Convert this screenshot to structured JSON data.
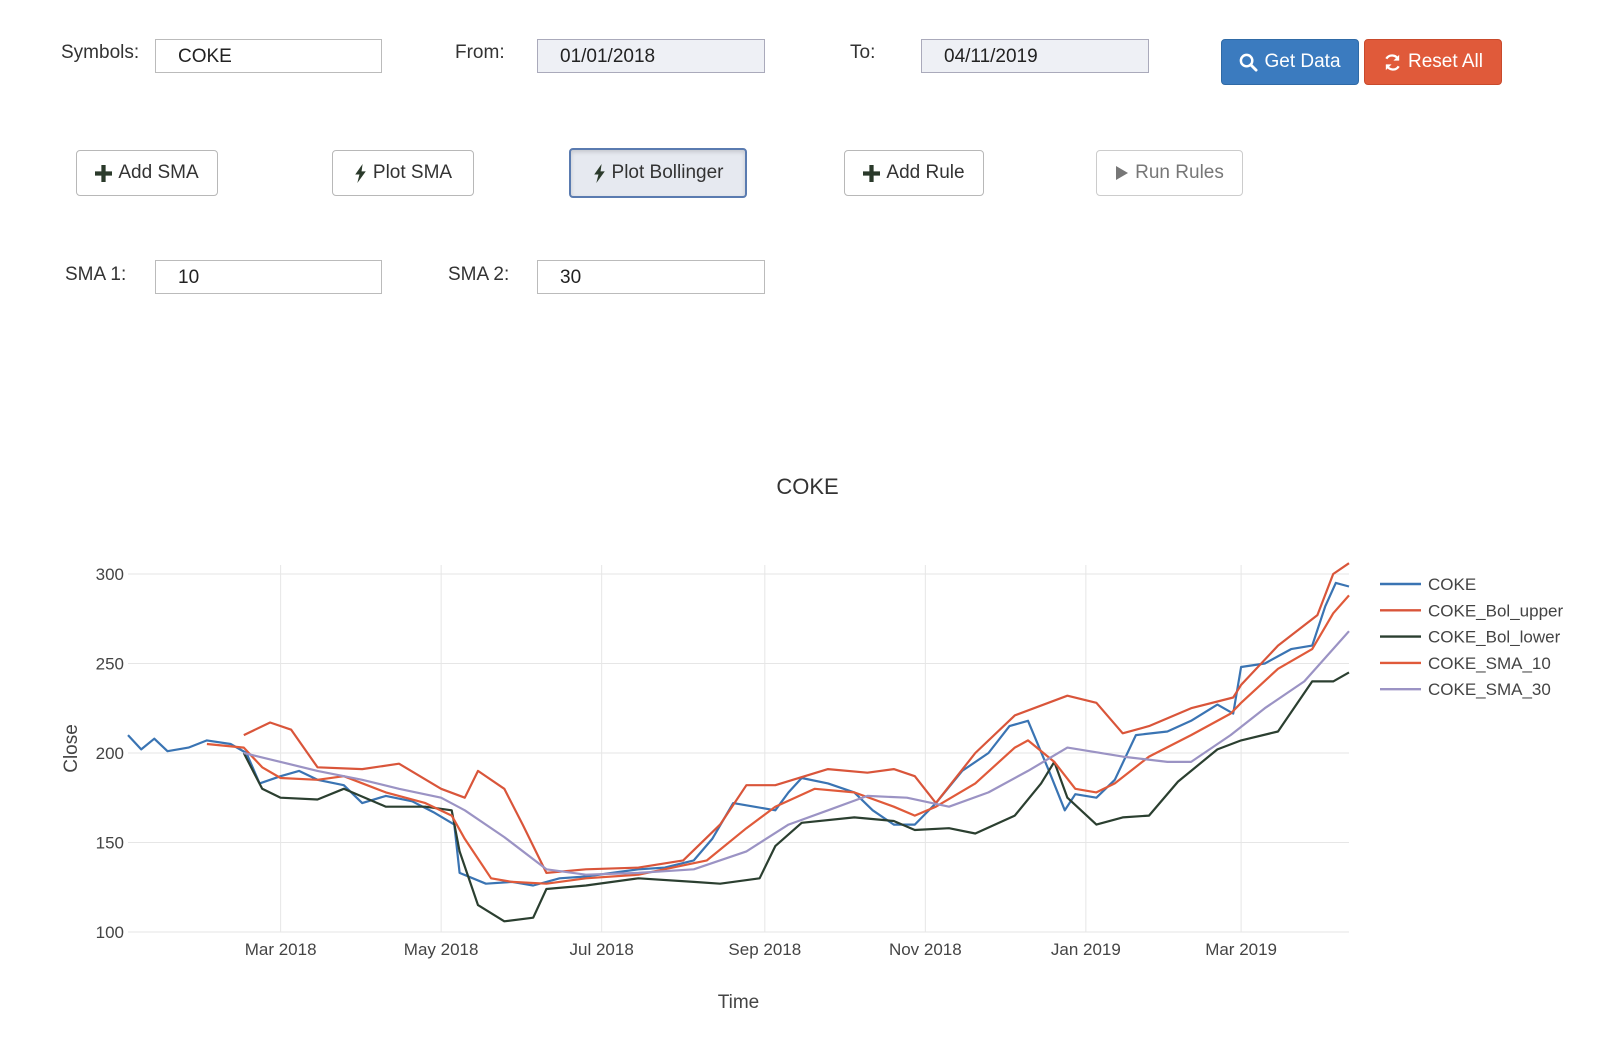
{
  "controls": {
    "symbols_label": "Symbols:",
    "symbols_value": "COKE",
    "from_label": "From:",
    "from_value": "01/01/2018",
    "to_label": "To:",
    "to_value": "04/11/2019",
    "get_data": "Get Data",
    "reset_all": "Reset All",
    "sma1_label": "SMA 1:",
    "sma1_value": "10",
    "sma2_label": "SMA 2:",
    "sma2_value": "30"
  },
  "actions": {
    "add_sma": "Add SMA",
    "plot_sma": "Plot SMA",
    "plot_bollinger": "Plot Bollinger",
    "add_rule": "Add Rule",
    "run_rules": "Run Rules"
  },
  "icons": {
    "get_data": "search-icon",
    "reset_all": "refresh-icon",
    "add": "plus-icon",
    "plot": "lightning-icon",
    "run": "play-icon"
  },
  "colors": {
    "primary": "#3b7bbf",
    "danger": "#e05a3a",
    "coke": "#3a74b3",
    "bol_upper": "#d9553a",
    "bol_lower": "#2b3f30",
    "sma10": "#e05a3a",
    "sma30": "#9b93c4"
  },
  "chart_data": {
    "type": "line",
    "title": "COKE",
    "xlabel": "Time",
    "ylabel": "Close",
    "xlim": [
      "2018-01-02",
      "2019-04-11"
    ],
    "ylim": [
      100,
      305
    ],
    "x_ticks": [
      "2018-03-01",
      "2018-05-01",
      "2018-07-01",
      "2018-09-01",
      "2018-11-01",
      "2019-01-01",
      "2019-03-01"
    ],
    "x_tick_labels": [
      "Mar 2018",
      "May 2018",
      "Jul 2018",
      "Sep 2018",
      "Nov 2018",
      "Jan 2019",
      "Mar 2019"
    ],
    "y_ticks": [
      100,
      150,
      200,
      250,
      300
    ],
    "grid": true,
    "legend_position": "right",
    "series": [
      {
        "name": "COKE",
        "color": "#3a74b3",
        "points": [
          [
            "2018-01-02",
            210
          ],
          [
            "2018-01-07",
            202
          ],
          [
            "2018-01-12",
            208
          ],
          [
            "2018-01-17",
            201
          ],
          [
            "2018-01-25",
            203
          ],
          [
            "2018-02-01",
            207
          ],
          [
            "2018-02-10",
            205
          ],
          [
            "2018-02-16",
            200
          ],
          [
            "2018-02-21",
            183
          ],
          [
            "2018-03-01",
            187
          ],
          [
            "2018-03-08",
            190
          ],
          [
            "2018-03-15",
            185
          ],
          [
            "2018-03-25",
            182
          ],
          [
            "2018-04-01",
            172
          ],
          [
            "2018-04-10",
            176
          ],
          [
            "2018-04-20",
            173
          ],
          [
            "2018-04-28",
            167
          ],
          [
            "2018-05-06",
            160
          ],
          [
            "2018-05-08",
            133
          ],
          [
            "2018-05-18",
            127
          ],
          [
            "2018-05-28",
            128
          ],
          [
            "2018-06-05",
            126
          ],
          [
            "2018-06-15",
            130
          ],
          [
            "2018-06-25",
            131
          ],
          [
            "2018-07-05",
            133
          ],
          [
            "2018-07-15",
            135
          ],
          [
            "2018-07-25",
            136
          ],
          [
            "2018-08-05",
            140
          ],
          [
            "2018-08-12",
            152
          ],
          [
            "2018-08-20",
            172
          ],
          [
            "2018-08-28",
            170
          ],
          [
            "2018-09-05",
            168
          ],
          [
            "2018-09-10",
            178
          ],
          [
            "2018-09-15",
            186
          ],
          [
            "2018-09-25",
            183
          ],
          [
            "2018-10-05",
            178
          ],
          [
            "2018-10-12",
            168
          ],
          [
            "2018-10-20",
            160
          ],
          [
            "2018-10-28",
            160
          ],
          [
            "2018-11-05",
            172
          ],
          [
            "2018-11-15",
            190
          ],
          [
            "2018-11-25",
            200
          ],
          [
            "2018-12-03",
            215
          ],
          [
            "2018-12-10",
            218
          ],
          [
            "2018-12-18",
            190
          ],
          [
            "2018-12-24",
            168
          ],
          [
            "2018-12-28",
            177
          ],
          [
            "2019-01-05",
            175
          ],
          [
            "2019-01-12",
            185
          ],
          [
            "2019-01-20",
            210
          ],
          [
            "2019-02-01",
            212
          ],
          [
            "2019-02-10",
            218
          ],
          [
            "2019-02-20",
            227
          ],
          [
            "2019-02-26",
            222
          ],
          [
            "2019-03-01",
            248
          ],
          [
            "2019-03-10",
            250
          ],
          [
            "2019-03-20",
            258
          ],
          [
            "2019-03-28",
            260
          ],
          [
            "2019-04-02",
            282
          ],
          [
            "2019-04-06",
            295
          ],
          [
            "2019-04-11",
            293
          ]
        ]
      },
      {
        "name": "COKE_Bol_upper",
        "color": "#d9553a",
        "points": [
          [
            "2018-02-15",
            210
          ],
          [
            "2018-02-25",
            217
          ],
          [
            "2018-03-05",
            213
          ],
          [
            "2018-03-15",
            192
          ],
          [
            "2018-04-01",
            191
          ],
          [
            "2018-04-15",
            194
          ],
          [
            "2018-05-01",
            180
          ],
          [
            "2018-05-10",
            175
          ],
          [
            "2018-05-15",
            190
          ],
          [
            "2018-05-25",
            180
          ],
          [
            "2018-06-01",
            160
          ],
          [
            "2018-06-10",
            133
          ],
          [
            "2018-06-25",
            135
          ],
          [
            "2018-07-15",
            136
          ],
          [
            "2018-08-01",
            140
          ],
          [
            "2018-08-15",
            160
          ],
          [
            "2018-08-25",
            182
          ],
          [
            "2018-09-05",
            182
          ],
          [
            "2018-09-25",
            191
          ],
          [
            "2018-10-10",
            189
          ],
          [
            "2018-10-20",
            191
          ],
          [
            "2018-10-28",
            187
          ],
          [
            "2018-11-05",
            172
          ],
          [
            "2018-11-20",
            200
          ],
          [
            "2018-12-05",
            221
          ],
          [
            "2018-12-25",
            232
          ],
          [
            "2019-01-05",
            228
          ],
          [
            "2019-01-15",
            211
          ],
          [
            "2019-01-25",
            215
          ],
          [
            "2019-02-10",
            225
          ],
          [
            "2019-02-26",
            231
          ],
          [
            "2019-03-01",
            238
          ],
          [
            "2019-03-15",
            260
          ],
          [
            "2019-03-30",
            277
          ],
          [
            "2019-04-05",
            300
          ],
          [
            "2019-04-11",
            306
          ]
        ]
      },
      {
        "name": "COKE_Bol_lower",
        "color": "#2b3f30",
        "points": [
          [
            "2018-02-15",
            200
          ],
          [
            "2018-02-22",
            180
          ],
          [
            "2018-03-01",
            175
          ],
          [
            "2018-03-15",
            174
          ],
          [
            "2018-03-25",
            180
          ],
          [
            "2018-04-10",
            170
          ],
          [
            "2018-04-25",
            170
          ],
          [
            "2018-05-05",
            168
          ],
          [
            "2018-05-08",
            145
          ],
          [
            "2018-05-15",
            115
          ],
          [
            "2018-05-25",
            106
          ],
          [
            "2018-06-05",
            108
          ],
          [
            "2018-06-10",
            124
          ],
          [
            "2018-06-25",
            126
          ],
          [
            "2018-07-15",
            130
          ],
          [
            "2018-08-05",
            128
          ],
          [
            "2018-08-15",
            127
          ],
          [
            "2018-08-30",
            130
          ],
          [
            "2018-09-05",
            148
          ],
          [
            "2018-09-15",
            161
          ],
          [
            "2018-10-05",
            164
          ],
          [
            "2018-10-20",
            162
          ],
          [
            "2018-10-28",
            157
          ],
          [
            "2018-11-10",
            158
          ],
          [
            "2018-11-20",
            155
          ],
          [
            "2018-12-05",
            165
          ],
          [
            "2018-12-15",
            183
          ],
          [
            "2018-12-20",
            195
          ],
          [
            "2018-12-25",
            175
          ],
          [
            "2019-01-05",
            160
          ],
          [
            "2019-01-15",
            164
          ],
          [
            "2019-01-25",
            165
          ],
          [
            "2019-02-05",
            184
          ],
          [
            "2019-02-20",
            202
          ],
          [
            "2019-03-01",
            207
          ],
          [
            "2019-03-15",
            212
          ],
          [
            "2019-03-28",
            240
          ],
          [
            "2019-04-05",
            240
          ],
          [
            "2019-04-11",
            245
          ]
        ]
      },
      {
        "name": "COKE_SMA_10",
        "color": "#e05a3a",
        "points": [
          [
            "2018-02-01",
            205
          ],
          [
            "2018-02-15",
            203
          ],
          [
            "2018-02-22",
            192
          ],
          [
            "2018-03-01",
            186
          ],
          [
            "2018-03-15",
            185
          ],
          [
            "2018-03-25",
            187
          ],
          [
            "2018-04-10",
            178
          ],
          [
            "2018-04-25",
            172
          ],
          [
            "2018-05-05",
            165
          ],
          [
            "2018-05-10",
            152
          ],
          [
            "2018-05-20",
            130
          ],
          [
            "2018-05-28",
            128
          ],
          [
            "2018-06-10",
            127
          ],
          [
            "2018-06-25",
            130
          ],
          [
            "2018-07-15",
            132
          ],
          [
            "2018-08-10",
            140
          ],
          [
            "2018-08-25",
            158
          ],
          [
            "2018-09-05",
            170
          ],
          [
            "2018-09-20",
            180
          ],
          [
            "2018-10-05",
            178
          ],
          [
            "2018-10-20",
            170
          ],
          [
            "2018-10-28",
            165
          ],
          [
            "2018-11-05",
            170
          ],
          [
            "2018-11-20",
            183
          ],
          [
            "2018-12-05",
            203
          ],
          [
            "2018-12-10",
            207
          ],
          [
            "2018-12-20",
            195
          ],
          [
            "2018-12-28",
            180
          ],
          [
            "2019-01-05",
            178
          ],
          [
            "2019-01-12",
            183
          ],
          [
            "2019-01-25",
            198
          ],
          [
            "2019-02-10",
            210
          ],
          [
            "2019-02-25",
            222
          ],
          [
            "2019-03-01",
            228
          ],
          [
            "2019-03-15",
            247
          ],
          [
            "2019-03-28",
            258
          ],
          [
            "2019-04-05",
            278
          ],
          [
            "2019-04-11",
            288
          ]
        ]
      },
      {
        "name": "COKE_SMA_30",
        "color": "#9b93c4",
        "points": [
          [
            "2018-02-15",
            200
          ],
          [
            "2018-03-01",
            195
          ],
          [
            "2018-03-15",
            190
          ],
          [
            "2018-04-01",
            185
          ],
          [
            "2018-04-15",
            180
          ],
          [
            "2018-05-01",
            175
          ],
          [
            "2018-05-10",
            168
          ],
          [
            "2018-05-25",
            153
          ],
          [
            "2018-06-10",
            135
          ],
          [
            "2018-06-25",
            132
          ],
          [
            "2018-07-15",
            133
          ],
          [
            "2018-08-05",
            135
          ],
          [
            "2018-08-25",
            145
          ],
          [
            "2018-09-10",
            160
          ],
          [
            "2018-09-25",
            168
          ],
          [
            "2018-10-10",
            176
          ],
          [
            "2018-10-25",
            175
          ],
          [
            "2018-11-10",
            170
          ],
          [
            "2018-11-25",
            178
          ],
          [
            "2018-12-10",
            190
          ],
          [
            "2018-12-25",
            203
          ],
          [
            "2019-01-15",
            198
          ],
          [
            "2019-02-01",
            195
          ],
          [
            "2019-02-10",
            195
          ],
          [
            "2019-02-25",
            210
          ],
          [
            "2019-03-10",
            225
          ],
          [
            "2019-03-25",
            240
          ],
          [
            "2019-04-11",
            268
          ]
        ]
      }
    ]
  }
}
